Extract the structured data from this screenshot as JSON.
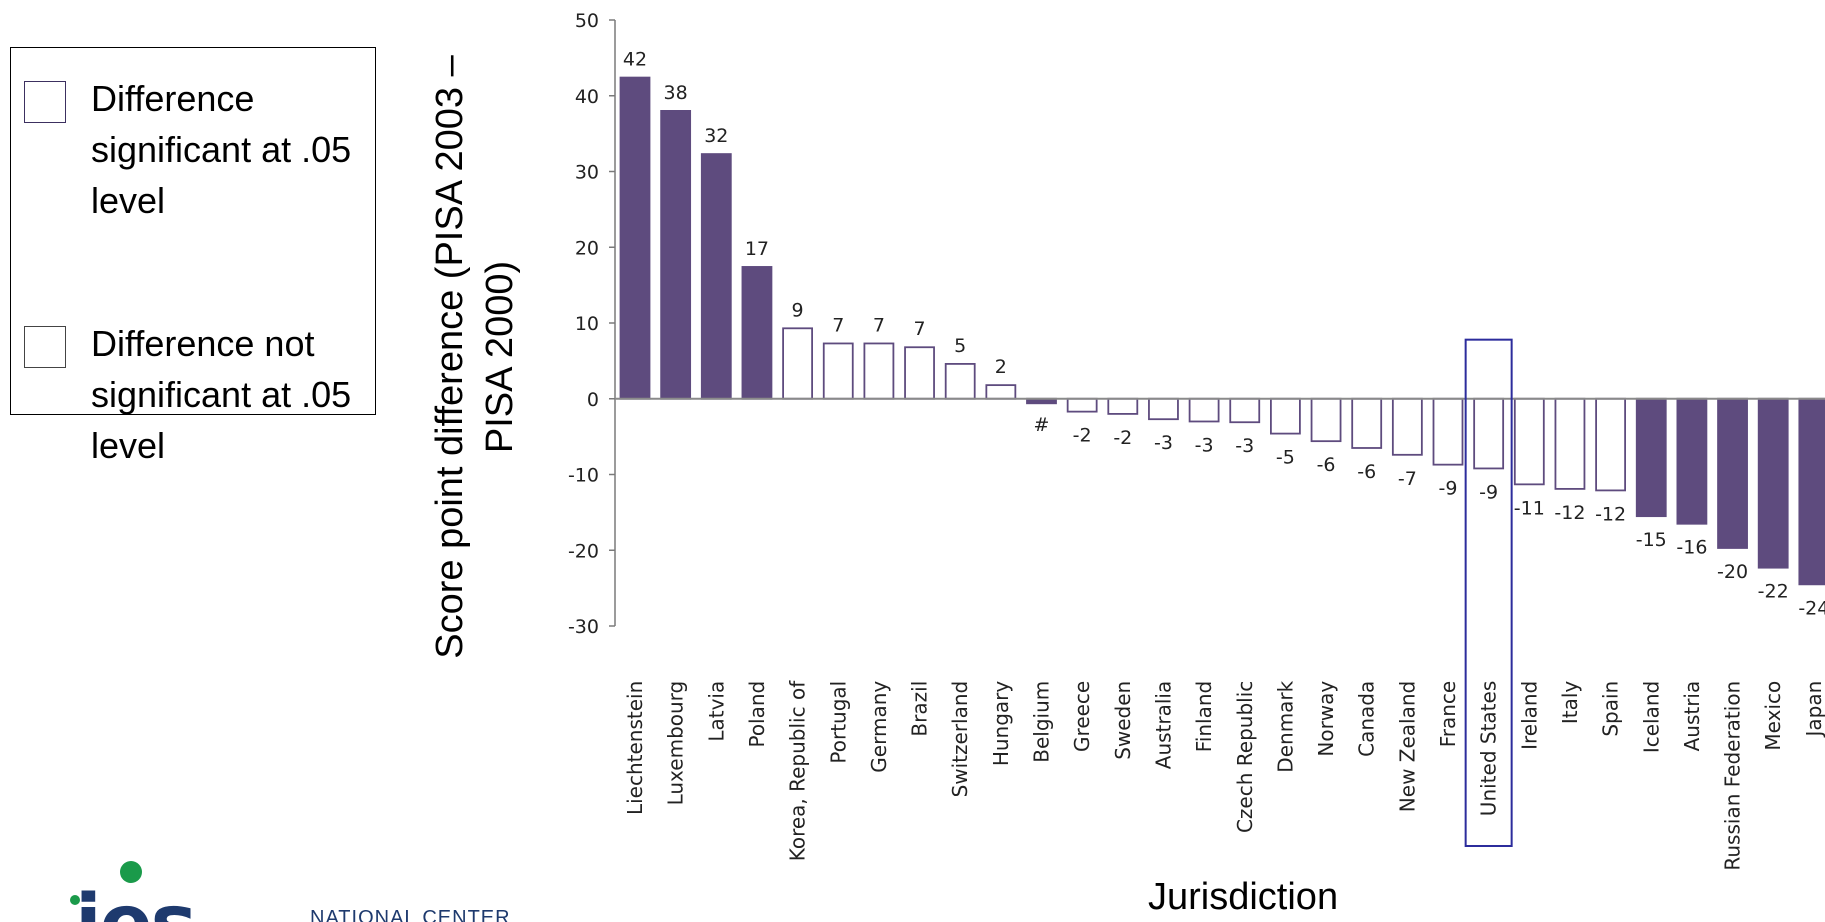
{
  "legend": {
    "significant_label": "Difference significant at .05 level",
    "not_significant_label": "Difference not significant at .05 level"
  },
  "colors": {
    "significant": "#5e4b7e",
    "not_significant": "#ffffff",
    "bar_outline": "#5e4b7e",
    "highlight": "#2c2c9c"
  },
  "logo": {
    "letters": "ies",
    "sub": "NATIONAL CENTER"
  },
  "chart_data": {
    "type": "bar",
    "xlabel": "Jurisdiction",
    "ylabel": "Score point difference (PISA 2003 – PISA 2000)",
    "ylim": [
      -30,
      50
    ],
    "yticks": [
      50,
      40,
      30,
      20,
      10,
      0,
      -10,
      -20,
      -30
    ],
    "highlighted_category": "United States",
    "categories": [
      "Liechtenstein",
      "Luxembourg",
      "Latvia",
      "Poland",
      "Korea, Republic of",
      "Portugal",
      "Germany",
      "Brazil",
      "Switzerland",
      "Hungary",
      "Belgium",
      "Greece",
      "Sweden",
      "Australia",
      "Finland",
      "Czech Republic",
      "Denmark",
      "Norway",
      "Canada",
      "New Zealand",
      "France",
      "United States",
      "Ireland",
      "Italy",
      "Spain",
      "Iceland",
      "Austria",
      "Russian Federation",
      "Mexico",
      "Japan"
    ],
    "values": [
      42.4,
      38,
      32.3,
      17.4,
      9.3,
      7.3,
      7.3,
      6.8,
      4.6,
      1.8,
      -0.6,
      -1.7,
      -2,
      -2.7,
      -3,
      -3.1,
      -4.6,
      -5.6,
      -6.5,
      -7.4,
      -8.7,
      -9.2,
      -11.3,
      -11.9,
      -12.1,
      -15.5,
      -16.5,
      -19.7,
      -22.3,
      -24.5
    ],
    "data_labels": [
      "42",
      "38",
      "32",
      "17",
      "9",
      "7",
      "7",
      "7",
      "5",
      "2",
      "#",
      "-2",
      "-2",
      "-3",
      "-3",
      "-3",
      "-5",
      "-6",
      "-6",
      "-7",
      "-9",
      "-9",
      "-11",
      "-12",
      "-12",
      "-15",
      "-16",
      "-20",
      "-22",
      "-24"
    ],
    "significant": [
      true,
      true,
      true,
      true,
      false,
      false,
      false,
      false,
      false,
      false,
      true,
      false,
      false,
      false,
      false,
      false,
      false,
      false,
      false,
      false,
      false,
      false,
      false,
      false,
      false,
      true,
      true,
      true,
      true,
      true
    ]
  }
}
